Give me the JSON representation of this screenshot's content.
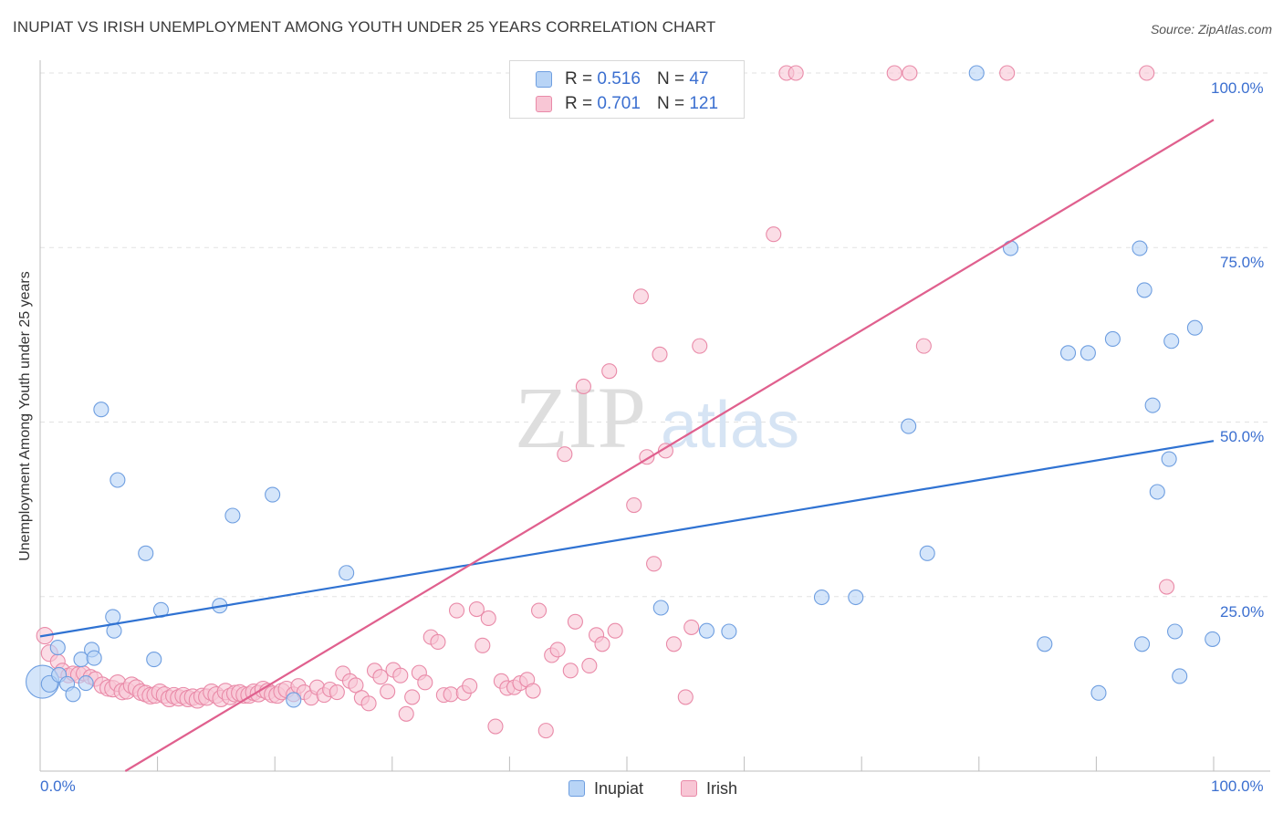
{
  "header": {
    "title": "INUPIAT VS IRISH UNEMPLOYMENT AMONG YOUTH UNDER 25 YEARS CORRELATION CHART",
    "source": "Source: ZipAtlas.com"
  },
  "watermark": {
    "zip": "ZIP",
    "atlas": "atlas"
  },
  "legend": {
    "r_label": "R =",
    "n_label": "N =",
    "inupiat": {
      "r": "0.516",
      "n": "47"
    },
    "irish": {
      "r": "0.701",
      "n": "121"
    }
  },
  "axis": {
    "ylabel": "Unemployment Among Youth under 25 years",
    "x_left": "0.0%",
    "x_right": "100.0%",
    "y_ticks": [
      "100.0%",
      "75.0%",
      "50.0%",
      "25.0%"
    ]
  },
  "colors": {
    "inupiat_fill": "#b8d4f6",
    "inupiat_stroke": "#6e9ee0",
    "inupiat_line": "#2f72d2",
    "irish_fill": "#f8c6d5",
    "irish_stroke": "#e98aa8",
    "irish_line": "#e0608e",
    "tick_label": "#3b6fd0"
  },
  "chart_data": {
    "type": "scatter",
    "title": "INUPIAT VS IRISH UNEMPLOYMENT AMONG YOUTH UNDER 25 YEARS CORRELATION CHART",
    "xlabel": "",
    "ylabel": "Unemployment Among Youth under 25 years",
    "xlim": [
      0,
      100
    ],
    "ylim": [
      0,
      100
    ],
    "grid": true,
    "legend_position": "top-center",
    "series": [
      {
        "name": "Inupiat",
        "r": 0.516,
        "n": 47,
        "trend": {
          "x": [
            0,
            100
          ],
          "y": [
            19.3,
            47.3
          ]
        },
        "points": [
          [
            0.2,
            12.8,
            18
          ],
          [
            0.8,
            12.5,
            9
          ],
          [
            1.5,
            17.7,
            8
          ],
          [
            1.6,
            13.8,
            8
          ],
          [
            2.3,
            12.5,
            8
          ],
          [
            2.8,
            11.0,
            8
          ],
          [
            3.5,
            16.0,
            8
          ],
          [
            3.9,
            12.6,
            8
          ],
          [
            4.4,
            17.4,
            8
          ],
          [
            4.6,
            16.2,
            8
          ],
          [
            5.2,
            51.8,
            8
          ],
          [
            6.2,
            22.1,
            8
          ],
          [
            6.3,
            20.1,
            8
          ],
          [
            6.6,
            41.7,
            8
          ],
          [
            9.0,
            31.2,
            8
          ],
          [
            9.7,
            16.0,
            8
          ],
          [
            10.3,
            23.1,
            8
          ],
          [
            15.3,
            23.7,
            8
          ],
          [
            16.4,
            36.6,
            8
          ],
          [
            19.8,
            39.6,
            8
          ],
          [
            21.6,
            10.2,
            8
          ],
          [
            26.1,
            28.4,
            8
          ],
          [
            52.9,
            23.4,
            8
          ],
          [
            56.8,
            20.1,
            8
          ],
          [
            58.7,
            20.0,
            8
          ],
          [
            66.6,
            24.9,
            8
          ],
          [
            69.5,
            24.9,
            8
          ],
          [
            74.0,
            49.4,
            8
          ],
          [
            75.6,
            31.2,
            8
          ],
          [
            79.8,
            100.0,
            8
          ],
          [
            82.7,
            74.9,
            8
          ],
          [
            85.6,
            18.2,
            8
          ],
          [
            87.6,
            59.9,
            8
          ],
          [
            89.3,
            59.9,
            8
          ],
          [
            90.2,
            11.2,
            8
          ],
          [
            91.4,
            61.9,
            8
          ],
          [
            93.7,
            74.9,
            8
          ],
          [
            93.9,
            18.2,
            8
          ],
          [
            94.1,
            68.9,
            8
          ],
          [
            94.8,
            52.4,
            8
          ],
          [
            95.2,
            40.0,
            8
          ],
          [
            96.2,
            44.7,
            8
          ],
          [
            96.4,
            61.6,
            8
          ],
          [
            96.7,
            20.0,
            8
          ],
          [
            97.1,
            13.6,
            8
          ],
          [
            98.4,
            63.5,
            8
          ],
          [
            99.9,
            18.9,
            8
          ]
        ]
      },
      {
        "name": "Irish",
        "r": 0.701,
        "n": 121,
        "trend": {
          "x": [
            0,
            100
          ],
          "y": [
            -7.3,
            93.3
          ]
        },
        "points": [
          [
            0.4,
            19.4,
            9
          ],
          [
            0.8,
            16.9,
            9
          ],
          [
            1.5,
            15.7,
            8
          ],
          [
            1.9,
            14.4,
            8
          ],
          [
            2.4,
            13.7,
            8
          ],
          [
            2.8,
            14.0,
            8
          ],
          [
            3.3,
            13.8,
            9
          ],
          [
            3.7,
            14.0,
            8
          ],
          [
            4.3,
            13.5,
            8
          ],
          [
            4.7,
            13.2,
            8
          ],
          [
            5.3,
            12.3,
            9
          ],
          [
            5.8,
            11.9,
            9
          ],
          [
            6.2,
            11.8,
            9
          ],
          [
            6.6,
            12.6,
            9
          ],
          [
            7.0,
            11.4,
            9
          ],
          [
            7.4,
            11.5,
            9
          ],
          [
            7.8,
            12.3,
            9
          ],
          [
            8.2,
            11.9,
            9
          ],
          [
            8.6,
            11.3,
            9
          ],
          [
            9.0,
            11.1,
            9
          ],
          [
            9.4,
            10.8,
            9
          ],
          [
            9.8,
            10.9,
            9
          ],
          [
            10.2,
            11.3,
            9
          ],
          [
            10.6,
            10.9,
            9
          ],
          [
            11.0,
            10.4,
            9
          ],
          [
            11.4,
            10.8,
            9
          ],
          [
            11.8,
            10.5,
            9
          ],
          [
            12.2,
            10.8,
            9
          ],
          [
            12.6,
            10.4,
            9
          ],
          [
            13.0,
            10.6,
            9
          ],
          [
            13.4,
            10.2,
            9
          ],
          [
            13.8,
            10.7,
            9
          ],
          [
            14.2,
            10.6,
            9
          ],
          [
            14.6,
            11.3,
            9
          ],
          [
            15.0,
            10.9,
            9
          ],
          [
            15.4,
            10.4,
            9
          ],
          [
            15.8,
            11.4,
            9
          ],
          [
            16.2,
            10.7,
            9
          ],
          [
            16.6,
            11.1,
            9
          ],
          [
            17.0,
            11.2,
            9
          ],
          [
            17.4,
            10.9,
            9
          ],
          [
            17.8,
            10.9,
            9
          ],
          [
            18.2,
            11.3,
            9
          ],
          [
            18.6,
            11.1,
            9
          ],
          [
            19.0,
            11.7,
            9
          ],
          [
            19.4,
            11.4,
            9
          ],
          [
            19.8,
            11.0,
            9
          ],
          [
            20.2,
            10.9,
            9
          ],
          [
            20.6,
            11.4,
            9
          ],
          [
            21.0,
            11.7,
            9
          ],
          [
            21.6,
            11.0,
            8
          ],
          [
            22.0,
            12.2,
            8
          ],
          [
            22.5,
            11.3,
            8
          ],
          [
            23.1,
            10.5,
            8
          ],
          [
            23.6,
            12.0,
            8
          ],
          [
            24.2,
            10.9,
            8
          ],
          [
            24.7,
            11.7,
            8
          ],
          [
            25.3,
            11.3,
            8
          ],
          [
            25.8,
            14.0,
            8
          ],
          [
            26.4,
            12.9,
            8
          ],
          [
            26.9,
            12.3,
            8
          ],
          [
            27.4,
            10.5,
            8
          ],
          [
            28.0,
            9.7,
            8
          ],
          [
            28.5,
            14.4,
            8
          ],
          [
            29.0,
            13.5,
            8
          ],
          [
            29.6,
            11.4,
            8
          ],
          [
            30.1,
            14.5,
            8
          ],
          [
            30.7,
            13.7,
            8
          ],
          [
            31.2,
            8.2,
            8
          ],
          [
            31.7,
            10.6,
            8
          ],
          [
            32.3,
            14.1,
            8
          ],
          [
            32.8,
            12.7,
            8
          ],
          [
            33.3,
            19.2,
            8
          ],
          [
            33.9,
            18.5,
            8
          ],
          [
            34.4,
            10.9,
            8
          ],
          [
            35.0,
            11.0,
            8
          ],
          [
            35.5,
            23.0,
            8
          ],
          [
            36.1,
            11.2,
            8
          ],
          [
            36.6,
            12.2,
            8
          ],
          [
            37.2,
            23.2,
            8
          ],
          [
            37.7,
            18.0,
            8
          ],
          [
            38.2,
            21.9,
            8
          ],
          [
            38.8,
            6.4,
            8
          ],
          [
            39.3,
            12.9,
            8
          ],
          [
            39.8,
            11.9,
            8
          ],
          [
            40.4,
            12.0,
            8
          ],
          [
            40.9,
            12.6,
            8
          ],
          [
            41.5,
            13.1,
            8
          ],
          [
            42.0,
            11.5,
            8
          ],
          [
            42.5,
            23.0,
            8
          ],
          [
            43.1,
            5.8,
            8
          ],
          [
            43.6,
            16.6,
            8
          ],
          [
            44.1,
            17.4,
            8
          ],
          [
            44.7,
            45.4,
            8
          ],
          [
            45.2,
            14.4,
            8
          ],
          [
            45.6,
            21.4,
            8
          ],
          [
            46.3,
            55.1,
            8
          ],
          [
            46.8,
            15.1,
            8
          ],
          [
            47.4,
            19.5,
            8
          ],
          [
            47.9,
            18.2,
            8
          ],
          [
            48.5,
            57.3,
            8
          ],
          [
            49.0,
            20.1,
            8
          ],
          [
            49.6,
            100.0,
            8
          ],
          [
            50.1,
            100.0,
            8
          ],
          [
            50.6,
            38.1,
            8
          ],
          [
            51.2,
            68.0,
            8
          ],
          [
            51.7,
            45.0,
            8
          ],
          [
            52.3,
            29.7,
            8
          ],
          [
            52.8,
            59.7,
            8
          ],
          [
            53.3,
            45.9,
            8
          ],
          [
            54.0,
            18.2,
            8
          ],
          [
            55.0,
            10.6,
            8
          ],
          [
            55.5,
            20.6,
            8
          ],
          [
            56.2,
            60.9,
            8
          ],
          [
            56.9,
            100.0,
            8
          ],
          [
            62.5,
            76.9,
            8
          ],
          [
            63.6,
            100.0,
            8
          ],
          [
            64.4,
            100.0,
            8
          ],
          [
            72.8,
            100.0,
            8
          ],
          [
            74.1,
            100.0,
            8
          ],
          [
            75.3,
            60.9,
            8
          ],
          [
            82.4,
            100.0,
            8
          ],
          [
            94.3,
            100.0,
            8
          ],
          [
            96.0,
            26.4,
            8
          ]
        ]
      }
    ]
  }
}
